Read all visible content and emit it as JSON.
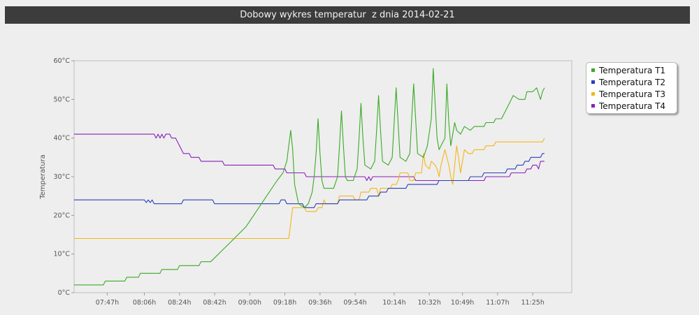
{
  "title": "Dobowy wykres temperatur  z dnia 2014-02-21",
  "chart_data": {
    "type": "line",
    "title": "Dobowy wykres temperatur  z dnia 2014-02-21",
    "xlabel": "",
    "ylabel": "Temperatura",
    "y_ticks": [
      "0°C",
      "10°C",
      "20°C",
      "30°C",
      "40°C",
      "50°C",
      "60°C"
    ],
    "ylim": [
      0,
      60
    ],
    "x_ticks": [
      "07:47h",
      "08:06h",
      "08:24h",
      "08:42h",
      "09:00h",
      "09:18h",
      "09:36h",
      "09:54h",
      "10:14h",
      "10:32h",
      "10:49h",
      "11:07h",
      "11:25h"
    ],
    "xlim": [
      "07:30",
      "11:45"
    ],
    "grid": false,
    "legend_position": "right",
    "series": [
      {
        "name": "Temperatura T1",
        "color": "#3aaa26",
        "points": [
          [
            "07:30",
            2
          ],
          [
            "07:45",
            2
          ],
          [
            "07:46",
            3
          ],
          [
            "07:56",
            3
          ],
          [
            "07:57",
            4
          ],
          [
            "08:03",
            4
          ],
          [
            "08:04",
            5
          ],
          [
            "08:14",
            5
          ],
          [
            "08:15",
            6
          ],
          [
            "08:23",
            6
          ],
          [
            "08:24",
            7
          ],
          [
            "08:34",
            7
          ],
          [
            "08:35",
            8
          ],
          [
            "08:40",
            8
          ],
          [
            "08:42",
            9
          ],
          [
            "08:46",
            11
          ],
          [
            "08:50",
            13
          ],
          [
            "08:54",
            15
          ],
          [
            "08:58",
            17
          ],
          [
            "09:02",
            20
          ],
          [
            "09:06",
            23
          ],
          [
            "09:10",
            26
          ],
          [
            "09:14",
            29
          ],
          [
            "09:17",
            31
          ],
          [
            "09:19",
            34
          ],
          [
            "09:20",
            38
          ],
          [
            "09:21",
            42
          ],
          [
            "09:22",
            37
          ],
          [
            "09:23",
            28
          ],
          [
            "09:25",
            23
          ],
          [
            "09:28",
            22
          ],
          [
            "09:30",
            23
          ],
          [
            "09:32",
            26
          ],
          [
            "09:33",
            30
          ],
          [
            "09:34",
            36
          ],
          [
            "09:35",
            45
          ],
          [
            "09:36",
            36
          ],
          [
            "09:37",
            29
          ],
          [
            "09:38",
            27
          ],
          [
            "09:43",
            27
          ],
          [
            "09:45",
            30
          ],
          [
            "09:46",
            38
          ],
          [
            "09:47",
            47
          ],
          [
            "09:48",
            38
          ],
          [
            "09:49",
            30
          ],
          [
            "09:50",
            29
          ],
          [
            "09:53",
            29
          ],
          [
            "09:55",
            32
          ],
          [
            "09:56",
            40
          ],
          [
            "09:57",
            49
          ],
          [
            "09:58",
            40
          ],
          [
            "09:59",
            33
          ],
          [
            "10:02",
            32
          ],
          [
            "10:04",
            34
          ],
          [
            "10:05",
            42
          ],
          [
            "10:06",
            51
          ],
          [
            "10:07",
            42
          ],
          [
            "10:08",
            34
          ],
          [
            "10:11",
            33
          ],
          [
            "10:13",
            35
          ],
          [
            "10:14",
            44
          ],
          [
            "10:15",
            53
          ],
          [
            "10:16",
            44
          ],
          [
            "10:17",
            35
          ],
          [
            "10:20",
            34
          ],
          [
            "10:22",
            36
          ],
          [
            "10:23",
            45
          ],
          [
            "10:24",
            54
          ],
          [
            "10:25",
            45
          ],
          [
            "10:26",
            36
          ],
          [
            "10:29",
            35
          ],
          [
            "10:31",
            38
          ],
          [
            "10:33",
            45
          ],
          [
            "10:34",
            58
          ],
          [
            "10:35",
            49
          ],
          [
            "10:36",
            40
          ],
          [
            "10:37",
            37
          ],
          [
            "10:38",
            38
          ],
          [
            "10:40",
            40
          ],
          [
            "10:41",
            54
          ],
          [
            "10:42",
            44
          ],
          [
            "10:43",
            38
          ],
          [
            "10:44",
            41
          ],
          [
            "10:45",
            44
          ],
          [
            "10:46",
            42
          ],
          [
            "10:48",
            41
          ],
          [
            "10:50",
            43
          ],
          [
            "10:53",
            42
          ],
          [
            "10:55",
            43
          ],
          [
            "11:00",
            43
          ],
          [
            "11:01",
            44
          ],
          [
            "11:05",
            44
          ],
          [
            "11:06",
            45
          ],
          [
            "11:09",
            45
          ],
          [
            "11:11",
            47
          ],
          [
            "11:13",
            49
          ],
          [
            "11:15",
            51
          ],
          [
            "11:18",
            50
          ],
          [
            "11:21",
            50
          ],
          [
            "11:22",
            52
          ],
          [
            "11:25",
            52
          ],
          [
            "11:27",
            53
          ],
          [
            "11:29",
            50
          ],
          [
            "11:30",
            52
          ],
          [
            "11:31",
            53
          ]
        ]
      },
      {
        "name": "Temperatura T2",
        "color": "#2a3fb8",
        "points": [
          [
            "07:30",
            24
          ],
          [
            "08:06",
            24
          ],
          [
            "08:07",
            23.3
          ],
          [
            "08:08",
            24
          ],
          [
            "08:09",
            23.3
          ],
          [
            "08:10",
            24
          ],
          [
            "08:11",
            23
          ],
          [
            "08:25",
            23
          ],
          [
            "08:26",
            24
          ],
          [
            "08:41",
            24
          ],
          [
            "08:42",
            23
          ],
          [
            "09:15",
            23
          ],
          [
            "09:16",
            24
          ],
          [
            "09:18",
            24
          ],
          [
            "09:19",
            23
          ],
          [
            "09:27",
            23
          ],
          [
            "09:28",
            22
          ],
          [
            "09:33",
            22
          ],
          [
            "09:34",
            23
          ],
          [
            "09:45",
            23
          ],
          [
            "09:46",
            24
          ],
          [
            "10:00",
            24
          ],
          [
            "10:01",
            25
          ],
          [
            "10:06",
            25
          ],
          [
            "10:07",
            26
          ],
          [
            "10:10",
            26
          ],
          [
            "10:11",
            27
          ],
          [
            "10:20",
            27
          ],
          [
            "10:21",
            28
          ],
          [
            "10:36",
            28
          ],
          [
            "10:37",
            29
          ],
          [
            "10:52",
            29
          ],
          [
            "10:53",
            30
          ],
          [
            "10:59",
            30
          ],
          [
            "11:00",
            31
          ],
          [
            "11:11",
            31
          ],
          [
            "11:12",
            32
          ],
          [
            "11:16",
            32
          ],
          [
            "11:17",
            33
          ],
          [
            "11:20",
            33
          ],
          [
            "11:21",
            34
          ],
          [
            "11:23",
            34
          ],
          [
            "11:24",
            35
          ],
          [
            "11:29",
            35
          ],
          [
            "11:30",
            36
          ],
          [
            "11:31",
            36
          ]
        ]
      },
      {
        "name": "Temperatura T3",
        "color": "#f4b619",
        "points": [
          [
            "07:30",
            14
          ],
          [
            "09:20",
            14
          ],
          [
            "09:21",
            18
          ],
          [
            "09:22",
            22
          ],
          [
            "09:28",
            22
          ],
          [
            "09:29",
            21
          ],
          [
            "09:34",
            21
          ],
          [
            "09:35",
            22
          ],
          [
            "09:37",
            22
          ],
          [
            "09:38",
            24
          ],
          [
            "09:39",
            23
          ],
          [
            "09:45",
            23
          ],
          [
            "09:46",
            25
          ],
          [
            "09:53",
            25
          ],
          [
            "09:54",
            24
          ],
          [
            "09:56",
            24
          ],
          [
            "09:57",
            26
          ],
          [
            "10:01",
            26
          ],
          [
            "10:02",
            27
          ],
          [
            "10:05",
            27
          ],
          [
            "10:06",
            25
          ],
          [
            "10:07",
            27
          ],
          [
            "10:12",
            27
          ],
          [
            "10:13",
            28
          ],
          [
            "10:15",
            28
          ],
          [
            "10:16",
            29
          ],
          [
            "10:17",
            31
          ],
          [
            "10:21",
            31
          ],
          [
            "10:22",
            29
          ],
          [
            "10:24",
            29
          ],
          [
            "10:25",
            31
          ],
          [
            "10:28",
            31
          ],
          [
            "10:29",
            36
          ],
          [
            "10:30",
            33
          ],
          [
            "10:32",
            32
          ],
          [
            "10:33",
            34
          ],
          [
            "10:35",
            33
          ],
          [
            "10:36",
            32
          ],
          [
            "10:37",
            30
          ],
          [
            "10:38",
            33
          ],
          [
            "10:40",
            37
          ],
          [
            "10:41",
            35
          ],
          [
            "10:42",
            33
          ],
          [
            "10:43",
            30
          ],
          [
            "10:44",
            28
          ],
          [
            "10:45",
            33
          ],
          [
            "10:46",
            38
          ],
          [
            "10:47",
            35
          ],
          [
            "10:48",
            31
          ],
          [
            "10:49",
            34
          ],
          [
            "10:50",
            37
          ],
          [
            "10:52",
            36
          ],
          [
            "10:54",
            36
          ],
          [
            "10:55",
            37
          ],
          [
            "11:00",
            37
          ],
          [
            "11:01",
            38
          ],
          [
            "11:05",
            38
          ],
          [
            "11:06",
            39
          ],
          [
            "11:30",
            39
          ],
          [
            "11:31",
            40
          ]
        ]
      },
      {
        "name": "Temperatura T4",
        "color": "#8a1fb8",
        "points": [
          [
            "07:30",
            41
          ],
          [
            "08:11",
            41
          ],
          [
            "08:12",
            40
          ],
          [
            "08:13",
            41
          ],
          [
            "08:14",
            40
          ],
          [
            "08:15",
            41
          ],
          [
            "08:16",
            40
          ],
          [
            "08:17",
            41
          ],
          [
            "08:19",
            41
          ],
          [
            "08:20",
            40
          ],
          [
            "08:22",
            40
          ],
          [
            "08:23",
            39
          ],
          [
            "08:24",
            38
          ],
          [
            "08:25",
            37
          ],
          [
            "08:26",
            36
          ],
          [
            "08:29",
            36
          ],
          [
            "08:30",
            35
          ],
          [
            "08:34",
            35
          ],
          [
            "08:35",
            34
          ],
          [
            "08:46",
            34
          ],
          [
            "08:47",
            33
          ],
          [
            "09:12",
            33
          ],
          [
            "09:13",
            32
          ],
          [
            "09:18",
            32
          ],
          [
            "09:19",
            31
          ],
          [
            "09:28",
            31
          ],
          [
            "09:29",
            30
          ],
          [
            "09:59",
            30
          ],
          [
            "10:00",
            29
          ],
          [
            "10:01",
            30
          ],
          [
            "10:02",
            29
          ],
          [
            "10:03",
            30
          ],
          [
            "10:24",
            30
          ],
          [
            "10:25",
            29
          ],
          [
            "11:00",
            29
          ],
          [
            "11:01",
            30
          ],
          [
            "11:13",
            30
          ],
          [
            "11:14",
            31
          ],
          [
            "11:21",
            31
          ],
          [
            "11:22",
            32
          ],
          [
            "11:24",
            32
          ],
          [
            "11:25",
            33
          ],
          [
            "11:27",
            33
          ],
          [
            "11:28",
            32
          ],
          [
            "11:29",
            34
          ],
          [
            "11:31",
            34
          ]
        ]
      }
    ]
  }
}
